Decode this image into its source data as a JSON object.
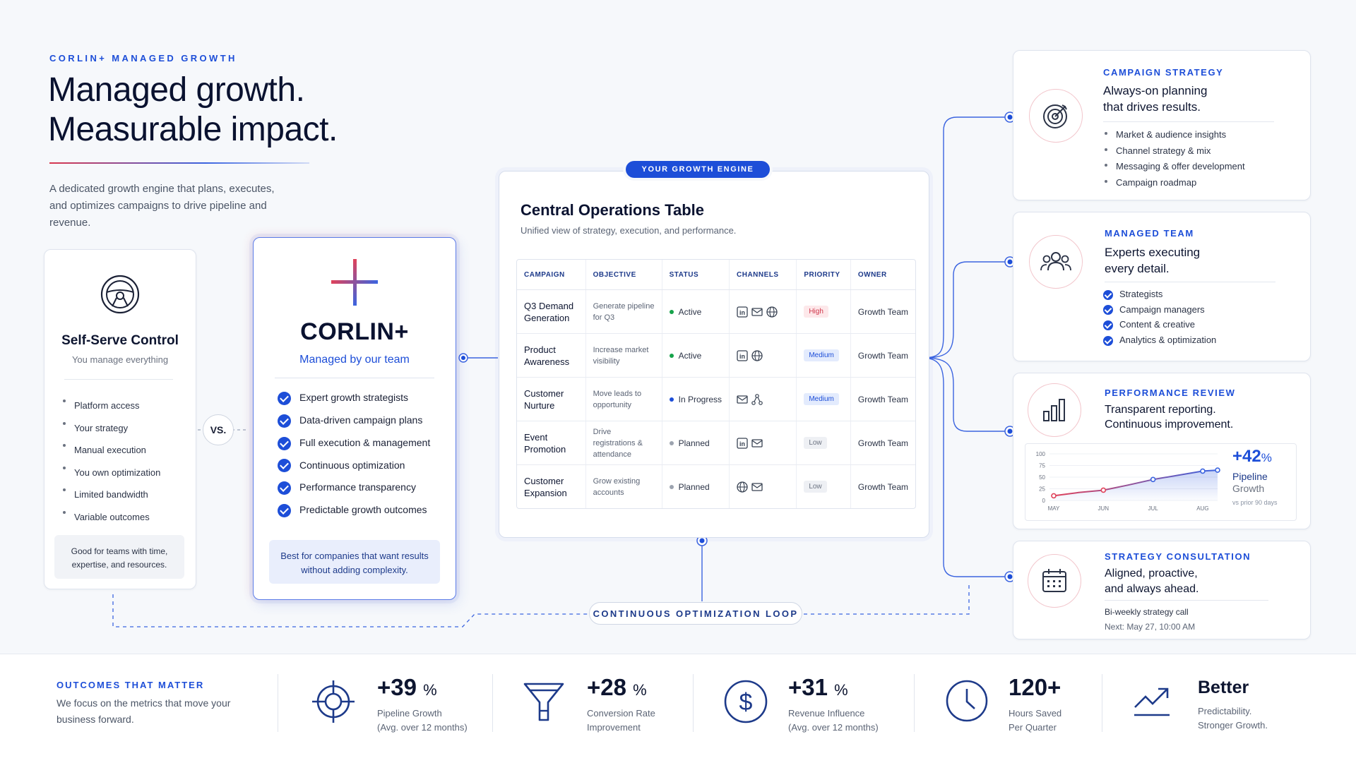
{
  "hero": {
    "eyebrow": "CORLIN+ MANAGED GROWTH",
    "title_line1": "Managed growth.",
    "title_line2": "Measurable impact.",
    "description": "A dedicated growth engine that plans, executes, and optimizes campaigns to drive pipeline and revenue."
  },
  "self_serve": {
    "title": "Self-Serve Control",
    "subtitle": "You manage everything",
    "items": [
      "Platform access",
      "Your strategy",
      "Manual execution",
      "You own optimization",
      "Limited bandwidth",
      "Variable outcomes"
    ],
    "note": "Good for teams with time, expertise, and resources."
  },
  "vs_label": "VS.",
  "corlin": {
    "name": "CORLIN+",
    "tagline": "Managed by our team",
    "items": [
      "Expert growth strategists",
      "Data-driven campaign plans",
      "Full execution & management",
      "Continuous optimization",
      "Performance transparency",
      "Predictable growth outcomes"
    ],
    "note": "Best for companies that want results without adding complexity."
  },
  "engine": {
    "pill": "YOUR GROWTH ENGINE",
    "title": "Central Operations Table",
    "subtitle": "Unified view of strategy, execution, and performance.",
    "columns": [
      "CAMPAIGN",
      "OBJECTIVE",
      "STATUS",
      "CHANNELS",
      "PRIORITY",
      "OWNER"
    ],
    "rows": [
      {
        "campaign": "Q3 Demand Generation",
        "objective": "Generate pipeline for Q3",
        "status": "Active",
        "status_color": "#16a34a",
        "channels": [
          "linkedin-icon",
          "email-icon",
          "globe-icon"
        ],
        "priority": "High",
        "owner": "Growth Team"
      },
      {
        "campaign": "Product Awareness",
        "objective": "Increase market visibility",
        "status": "Active",
        "status_color": "#16a34a",
        "channels": [
          "linkedin-icon",
          "globe-icon"
        ],
        "priority": "Medium",
        "owner": "Growth Team"
      },
      {
        "campaign": "Customer Nurture",
        "objective": "Move leads to opportunity",
        "status": "In Progress",
        "status_color": "#1d4ed8",
        "channels": [
          "email-icon",
          "network-icon"
        ],
        "priority": "Medium",
        "owner": "Growth Team"
      },
      {
        "campaign": "Event Promotion",
        "objective": "Drive registrations & attendance",
        "status": "Planned",
        "status_color": "#9ca3af",
        "channels": [
          "linkedin-icon",
          "email-icon"
        ],
        "priority": "Low",
        "owner": "Growth Team"
      },
      {
        "campaign": "Customer Expansion",
        "objective": "Grow existing accounts",
        "status": "Planned",
        "status_color": "#9ca3af",
        "channels": [
          "globe-icon",
          "email-icon"
        ],
        "priority": "Low",
        "owner": "Growth Team"
      }
    ],
    "loop_label": "CONTINUOUS OPTIMIZATION LOOP"
  },
  "priority_styles": {
    "High": {
      "bg": "#fde8ea",
      "fg": "#d0364b"
    },
    "Medium": {
      "bg": "#e3ebfd",
      "fg": "#1d4ed8"
    },
    "Low": {
      "bg": "#eef0f4",
      "fg": "#6b7280"
    }
  },
  "right_cards": {
    "strategy": {
      "eyebrow": "CAMPAIGN STRATEGY",
      "title_line1": "Always-on planning",
      "title_line2": "that drives results.",
      "items": [
        "Market & audience insights",
        "Channel strategy & mix",
        "Messaging & offer development",
        "Campaign roadmap"
      ]
    },
    "team": {
      "eyebrow": "MANAGED TEAM",
      "title_line1": "Experts executing",
      "title_line2": "every detail.",
      "items": [
        "Strategists",
        "Campaign managers",
        "Content & creative",
        "Analytics & optimization"
      ]
    },
    "performance": {
      "eyebrow": "PERFORMANCE REVIEW",
      "title_line1": "Transparent reporting.",
      "title_line2": "Continuous improvement.",
      "stat_value": "+42",
      "stat_unit": "%",
      "stat_label_line1": "Pipeline",
      "stat_label_line2": "Growth",
      "stat_note": "vs prior 90 days"
    },
    "consultation": {
      "eyebrow": "STRATEGY CONSULTATION",
      "title_line1": "Aligned, proactive,",
      "title_line2": "and always ahead.",
      "detail1": "Bi-weekly strategy call",
      "detail2": "Next: May 27, 10:00 AM"
    }
  },
  "chart_data": {
    "type": "line",
    "categories": [
      "MAY",
      "JUN",
      "JUL",
      "AUG"
    ],
    "x": [
      0,
      0.5,
      1,
      1.5,
      2,
      2.5,
      3,
      3.3
    ],
    "values": [
      10,
      17,
      22,
      33,
      45,
      54,
      63,
      65
    ],
    "yticks": [
      0,
      25,
      50,
      75,
      100
    ],
    "ylim": [
      0,
      100
    ],
    "title": "",
    "xlabel": "",
    "ylabel": "",
    "colors": {
      "start": "#e0425a",
      "end": "#3b64e0"
    }
  },
  "outcomes": {
    "eyebrow": "OUTCOMES THAT MATTER",
    "description": "We focus on the metrics that move your business forward.",
    "metrics": [
      {
        "icon": "target-icon",
        "value": "+39",
        "unit": "%",
        "label1": "Pipeline Growth",
        "label2": "(Avg. over 12 months)"
      },
      {
        "icon": "funnel-icon",
        "value": "+28",
        "unit": "%",
        "label1": "Conversion Rate",
        "label2": "Improvement"
      },
      {
        "icon": "dollar-icon",
        "value": "+31",
        "unit": "%",
        "label1": "Revenue Influence",
        "label2": "(Avg. over 12 months)"
      },
      {
        "icon": "clock-icon",
        "value": "120+",
        "unit": "",
        "label1": "Hours Saved",
        "label2": "Per Quarter"
      },
      {
        "icon": "trend-up-icon",
        "value": "Better",
        "unit": "",
        "label1": "Predictability.",
        "label2": "Stronger Growth."
      }
    ]
  }
}
